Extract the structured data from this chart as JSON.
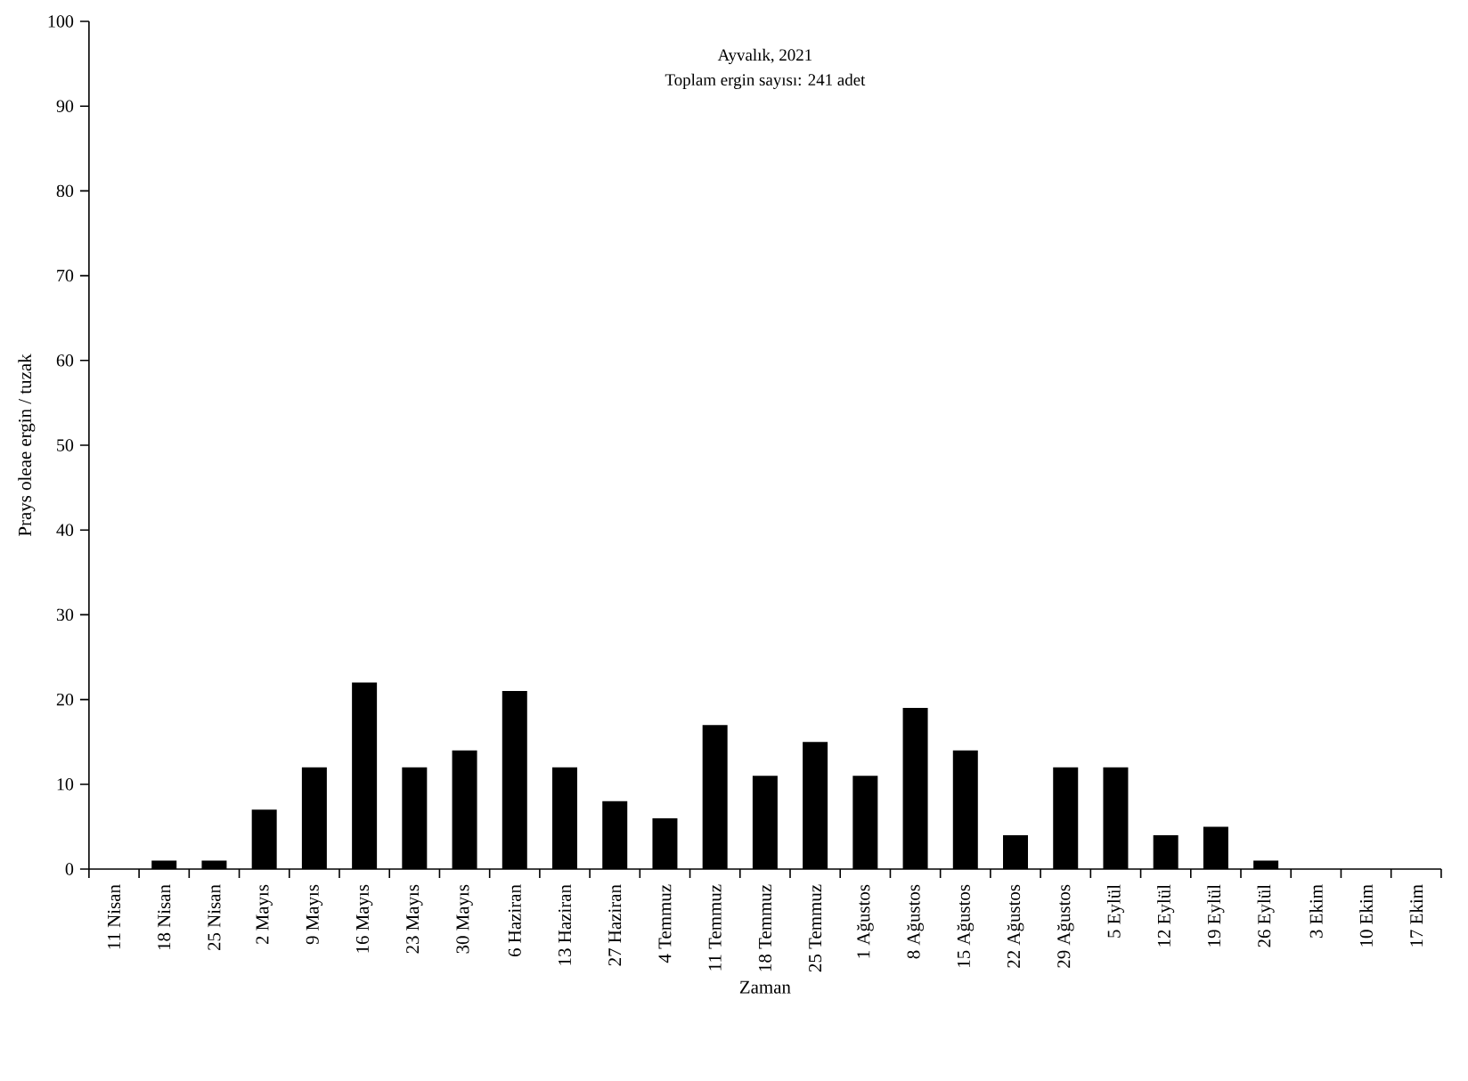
{
  "chart_data": {
    "type": "bar",
    "title": "Ayvalık, 2021",
    "subtitle": "Toplam ergin sayısı: 241 adet",
    "xlabel": "Zaman",
    "ylabel": "Prays oleae ergin / tuzak",
    "categories": [
      "11 Nisan",
      "18 Nisan",
      "25 Nisan",
      "2 Mayıs",
      "9 Mayıs",
      "16 Mayıs",
      "23 Mayıs",
      "30 Mayıs",
      "6 Haziran",
      "13 Haziran",
      "27 Haziran",
      "4 Temmuz",
      "11 Temmuz",
      "18 Temmuz",
      "25 Temmuz",
      "1 Ağustos",
      "8 Ağustos",
      "15 Ağustos",
      "22 Ağustos",
      "29 Ağustos",
      "5 Eylül",
      "12 Eylül",
      "19 Eylül",
      "26 Eylül",
      "3 Ekim",
      "10 Ekim",
      "17 Ekim"
    ],
    "values": [
      0,
      1,
      1,
      7,
      12,
      22,
      12,
      14,
      21,
      12,
      8,
      6,
      17,
      11,
      15,
      11,
      19,
      14,
      4,
      12,
      12,
      4,
      5,
      1,
      0,
      0,
      0
    ],
    "color": "#000000",
    "ylim": [
      0,
      100
    ],
    "yticks": [
      0,
      10,
      20,
      30,
      40,
      50,
      60,
      70,
      80,
      90,
      100
    ],
    "grid": false,
    "legend": false
  }
}
